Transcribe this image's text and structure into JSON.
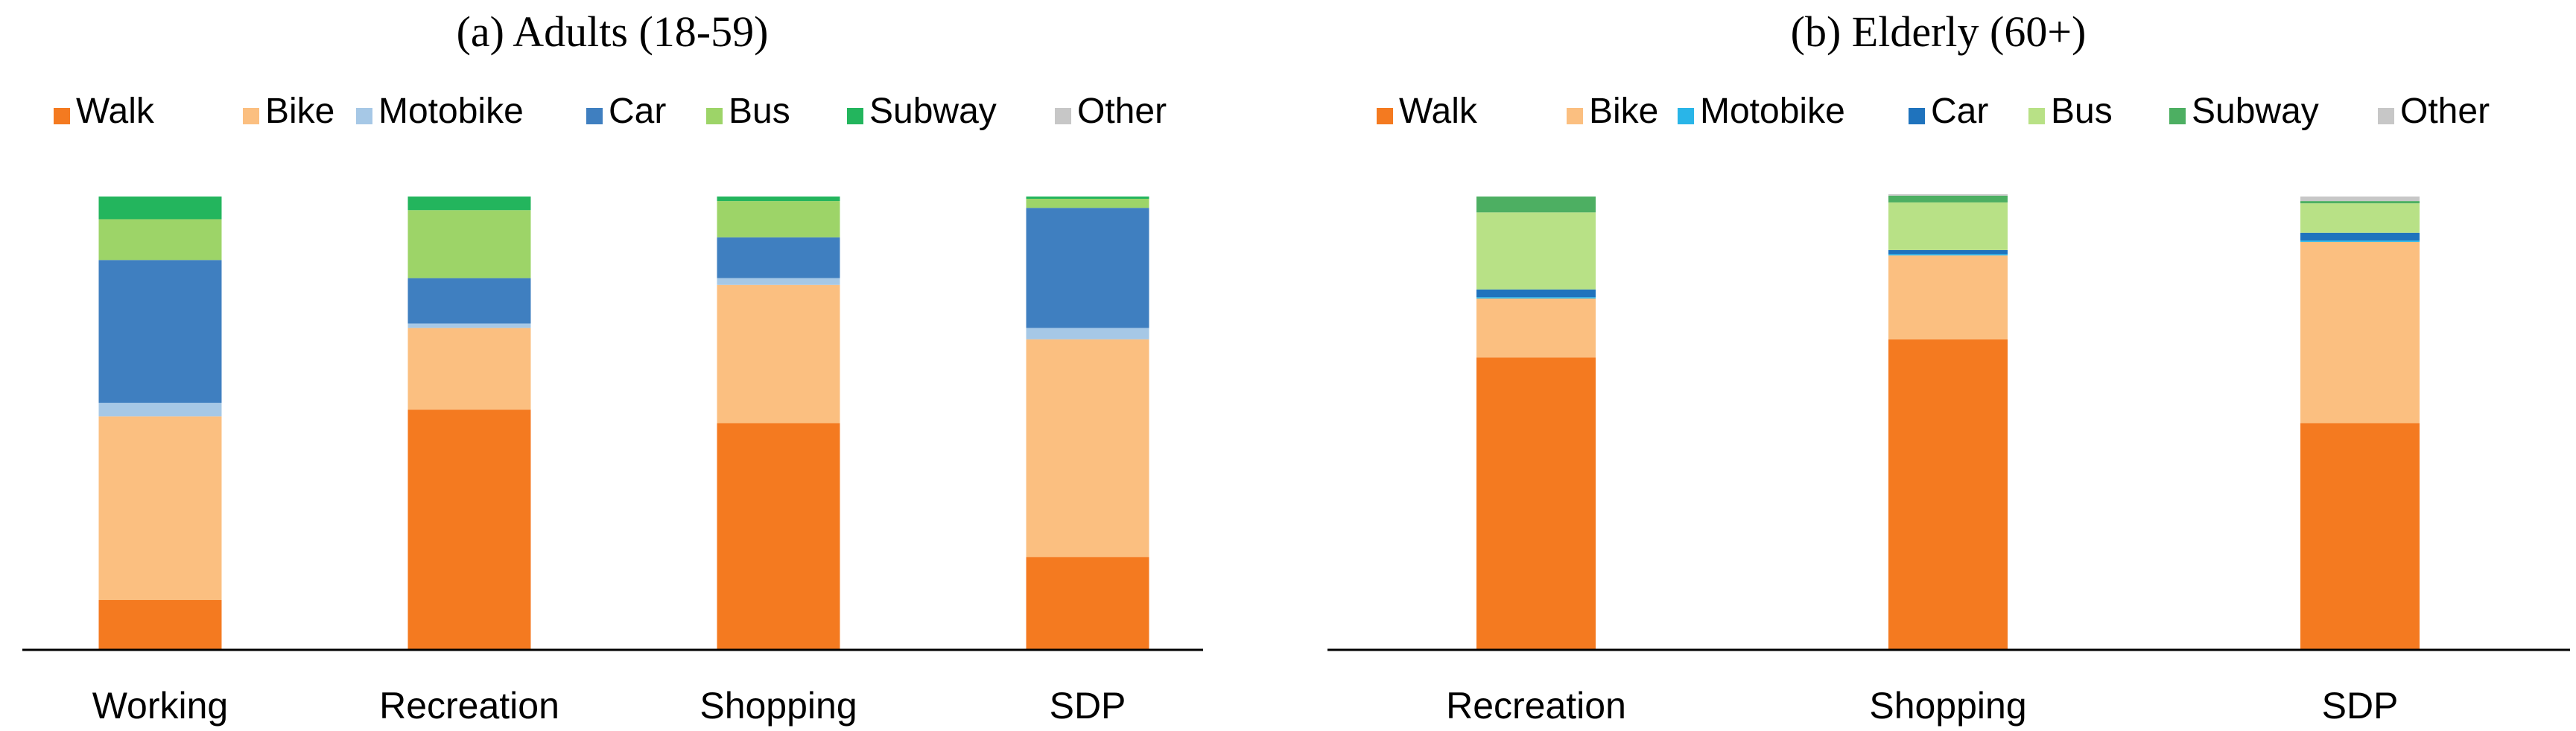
{
  "chart_data": [
    {
      "type": "bar",
      "stacked": true,
      "normalized": true,
      "title": "(a) Adults (18-59)",
      "xlabel": "",
      "ylabel": "",
      "ylim": [
        0,
        100
      ],
      "legend_position": "top",
      "categories": [
        "Working",
        "Recreation",
        "Shopping",
        "SDP"
      ],
      "series": [
        {
          "name": "Walk",
          "color": "#f47a20",
          "values": [
            11,
            53,
            50,
            20.5
          ]
        },
        {
          "name": "Bike",
          "color": "#fbbf80",
          "values": [
            40.5,
            18,
            30.5,
            48
          ]
        },
        {
          "name": "Motobike",
          "color": "#a6c8e6",
          "values": [
            3,
            1,
            1.5,
            2.5
          ]
        },
        {
          "name": "Car",
          "color": "#3f7fc0",
          "values": [
            31.5,
            10,
            9,
            26.5
          ]
        },
        {
          "name": "Bus",
          "color": "#9dd468",
          "values": [
            9,
            15,
            8,
            2
          ]
        },
        {
          "name": "Subway",
          "color": "#23b55d",
          "values": [
            5,
            3,
            1,
            0.5
          ]
        },
        {
          "name": "Other",
          "color": "#c7c7c7",
          "values": [
            0,
            0,
            0,
            0
          ]
        }
      ]
    },
    {
      "type": "bar",
      "stacked": true,
      "normalized": true,
      "title": "(b) Elderly (60+)",
      "xlabel": "",
      "ylabel": "",
      "ylim": [
        0,
        100
      ],
      "legend_position": "top",
      "categories": [
        "Recreation",
        "Shopping",
        "SDP"
      ],
      "series": [
        {
          "name": "Walk",
          "color": "#f47a20",
          "values": [
            64.5,
            68.5,
            50
          ]
        },
        {
          "name": "Bike",
          "color": "#fbbf80",
          "values": [
            13,
            18.5,
            40
          ]
        },
        {
          "name": "Motobike",
          "color": "#29b5e8",
          "values": [
            0.3,
            0.3,
            0.3
          ]
        },
        {
          "name": "Car",
          "color": "#1f73bd",
          "values": [
            1.7,
            0.9,
            1.7
          ]
        },
        {
          "name": "Bus",
          "color": "#b8e186",
          "values": [
            17,
            10.5,
            6.5
          ]
        },
        {
          "name": "Subway",
          "color": "#4daf62",
          "values": [
            3.5,
            1.5,
            0.5
          ]
        },
        {
          "name": "Other",
          "color": "#c7c7c7",
          "values": [
            0,
            0.3,
            1
          ]
        }
      ]
    }
  ]
}
